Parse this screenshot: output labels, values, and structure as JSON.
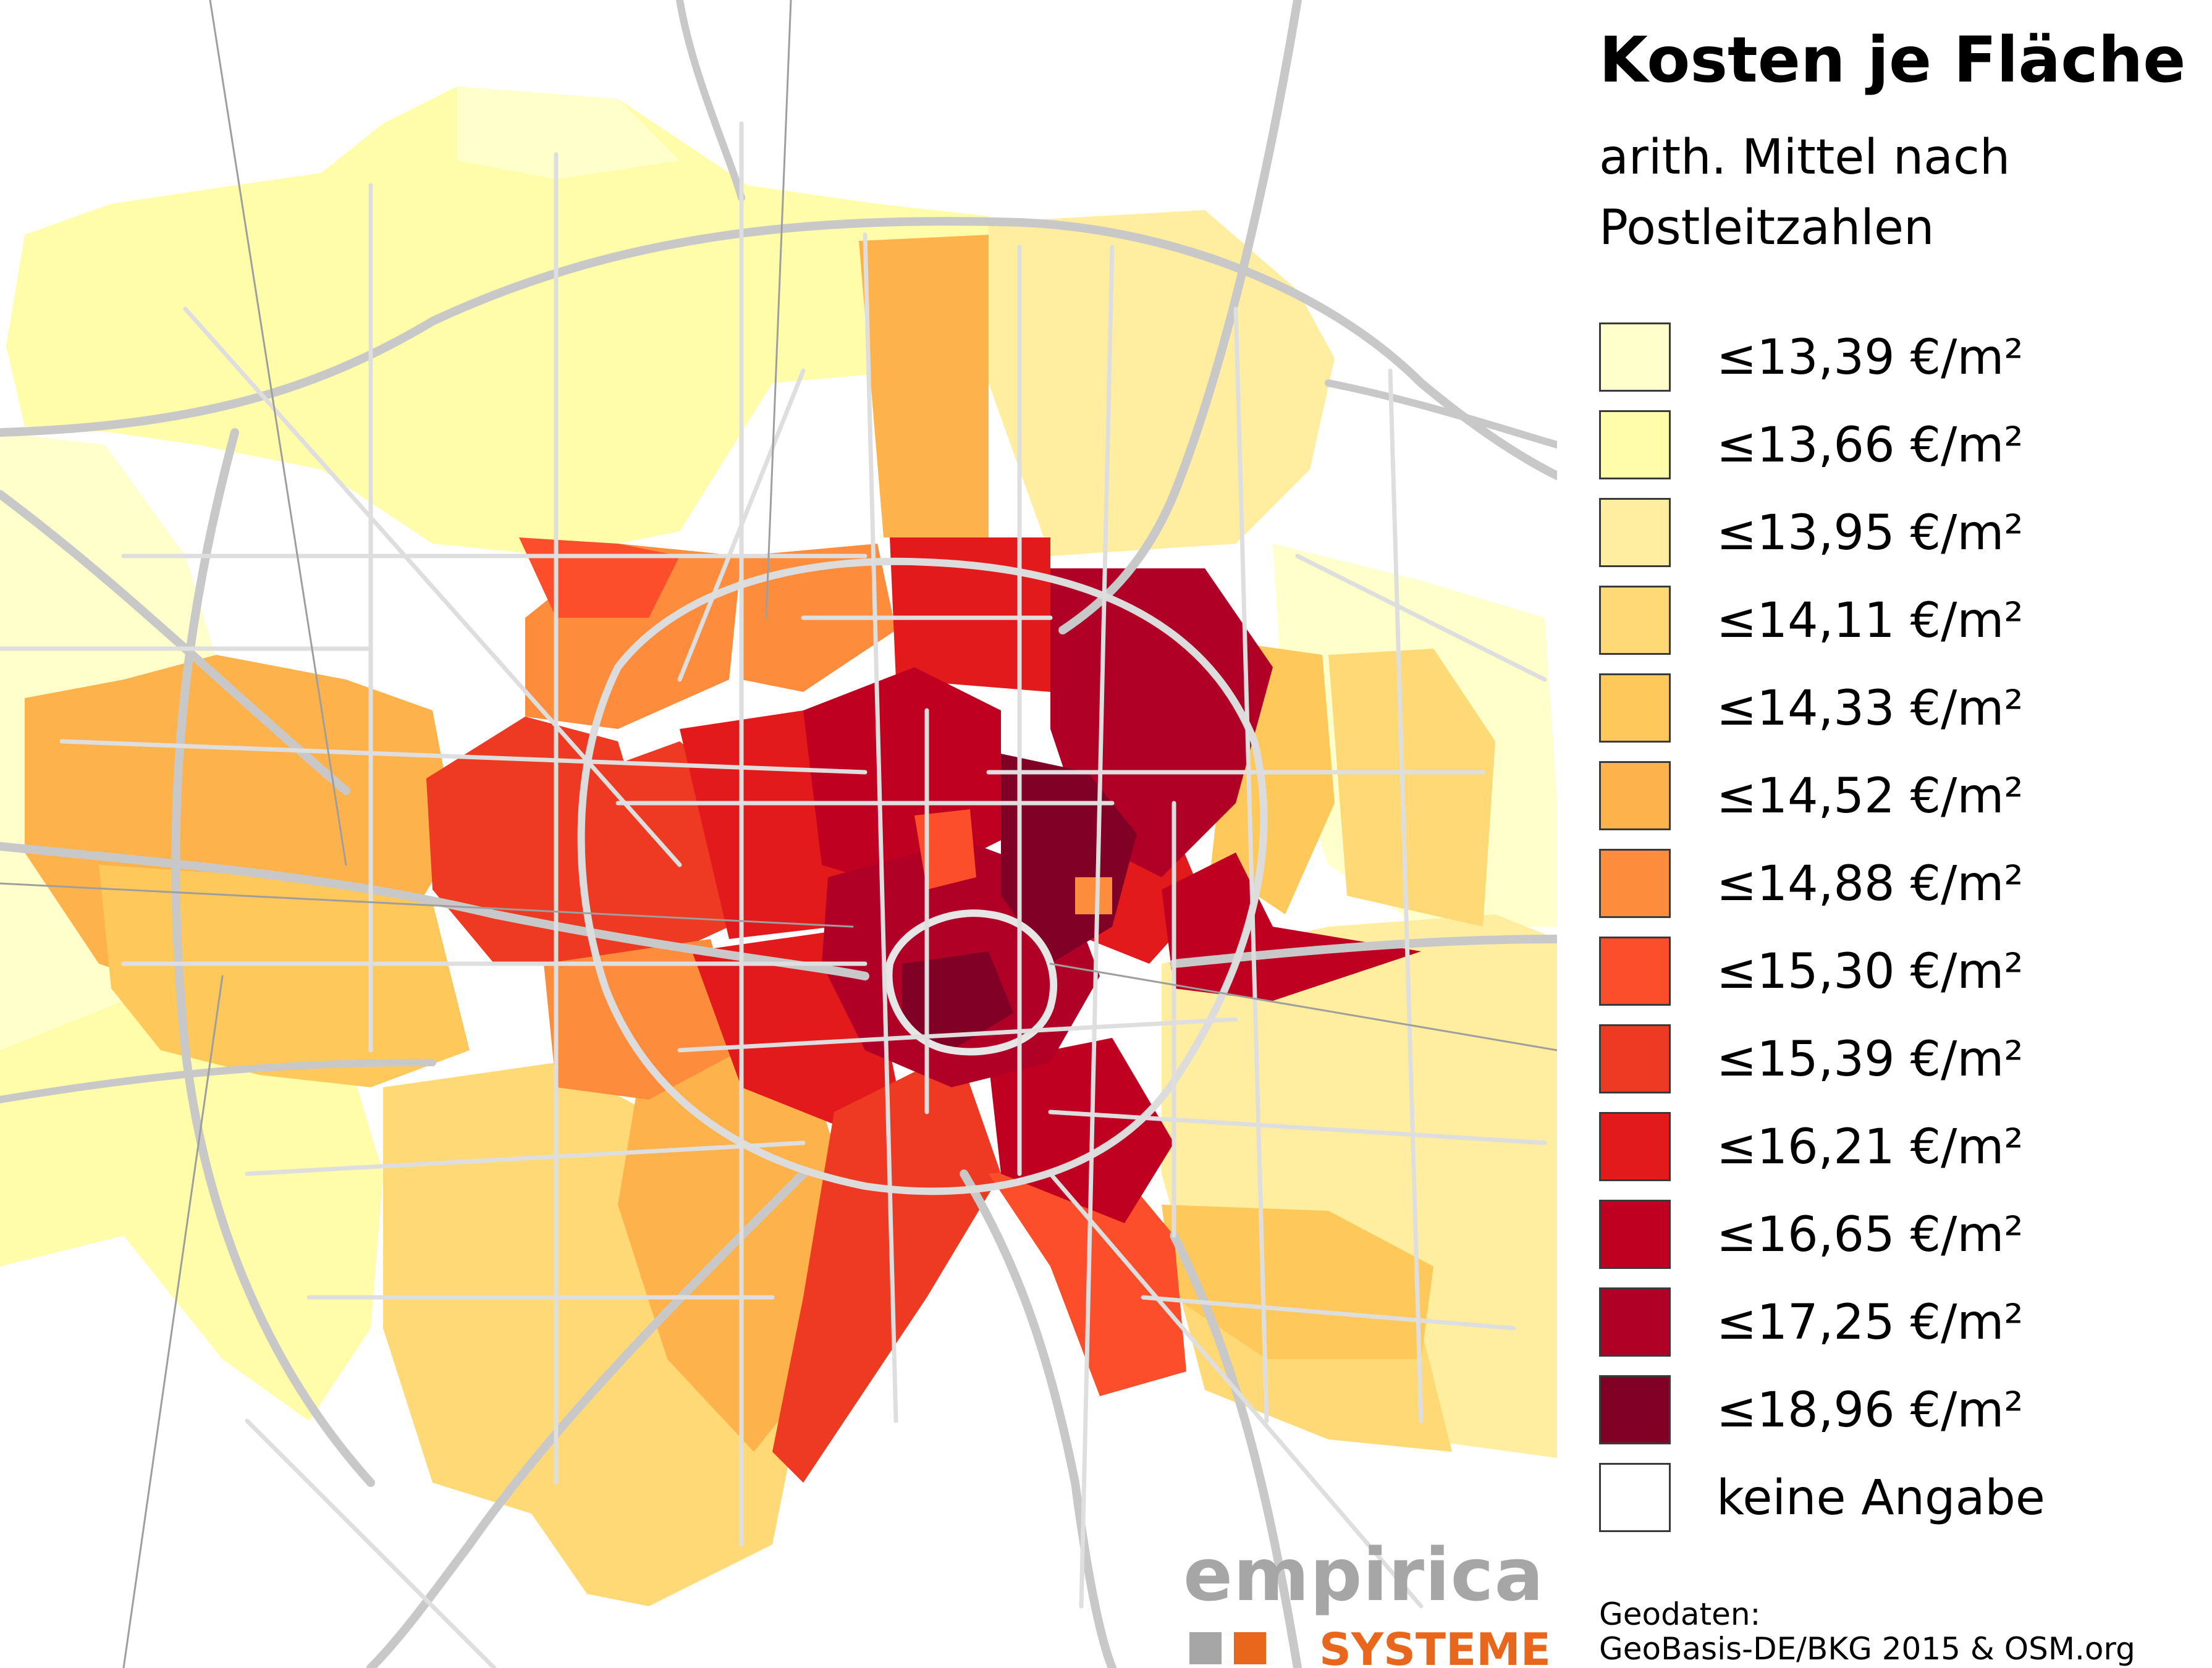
{
  "legend": {
    "title": "Kosten je Fläche",
    "subtitle": "arith. Mittel nach Postleitzahlen",
    "classes": [
      {
        "label": "≤13,39 €/m²",
        "upper": 13.39,
        "color": "#ffffcc"
      },
      {
        "label": "≤13,66 €/m²",
        "upper": 13.66,
        "color": "#fffcaa"
      },
      {
        "label": "≤13,95 €/m²",
        "upper": 13.95,
        "color": "#ffeda0"
      },
      {
        "label": "≤14,11 €/m²",
        "upper": 14.11,
        "color": "#fed976"
      },
      {
        "label": "≤14,33 €/m²",
        "upper": 14.33,
        "color": "#fec95a"
      },
      {
        "label": "≤14,52 €/m²",
        "upper": 14.52,
        "color": "#feb24c"
      },
      {
        "label": "≤14,88 €/m²",
        "upper": 14.88,
        "color": "#fd8d3c"
      },
      {
        "label": "≤15,30 €/m²",
        "upper": 15.3,
        "color": "#fc4e2a"
      },
      {
        "label": "≤15,39 €/m²",
        "upper": 15.39,
        "color": "#ee3a22"
      },
      {
        "label": "≤16,21 €/m²",
        "upper": 16.21,
        "color": "#e31a1c"
      },
      {
        "label": "≤16,65 €/m²",
        "upper": 16.65,
        "color": "#c00020"
      },
      {
        "label": "≤17,25 €/m²",
        "upper": 17.25,
        "color": "#b10026"
      },
      {
        "label": "≤18,96 €/m²",
        "upper": 18.96,
        "color": "#800026"
      }
    ],
    "no_data": {
      "label": "keine Angabe",
      "color": "#ffffff"
    }
  },
  "attribution": {
    "line1": "Geodaten:",
    "line2": "GeoBasis-DE/BKG 2015 & OSM.org"
  },
  "logo": {
    "word": "empirica",
    "sub": "SYSTEME",
    "grey": "#a6a6a6",
    "orange": "#e8671c"
  },
  "map": {
    "road_color": "#c8c8c8",
    "inner_road_color": "#dcdcdc"
  }
}
